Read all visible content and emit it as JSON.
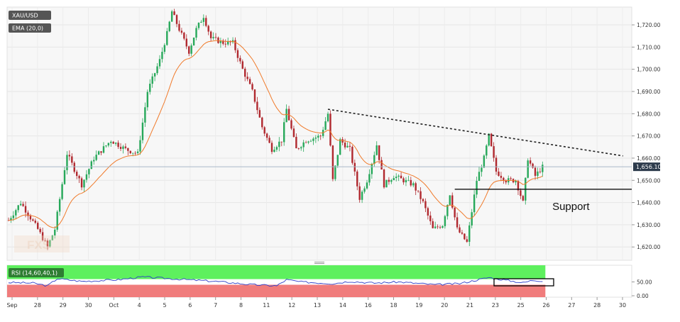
{
  "chart_data": [
    {
      "type": "candlestick",
      "legend": [
        {
          "label": "XAU/USD",
          "color": "#555555"
        },
        {
          "label": "EMA (20,0)",
          "color": "#555555"
        }
      ],
      "y_ticks": [
        "1,620.00",
        "1,630.00",
        "1,640.00",
        "1,650.00",
        "1,660.00",
        "1,670.00",
        "1,680.00",
        "1,690.00",
        "1,700.00",
        "1,710.00",
        "1,720.00"
      ],
      "y_tick_values": [
        1620,
        1630,
        1640,
        1650,
        1660,
        1670,
        1680,
        1690,
        1700,
        1710,
        1720
      ],
      "ylim": [
        1614,
        1728
      ],
      "x_ticks": [
        "Sep",
        "28",
        "29",
        "30",
        "Oct",
        "4",
        "5",
        "6",
        "7",
        "8",
        "11",
        "12",
        "13",
        "14",
        "16",
        "18",
        "19",
        "20",
        "21",
        "23",
        "25",
        "26",
        "27",
        "28",
        "30"
      ],
      "last_price": {
        "label": "1,656.10",
        "value": 1656.1
      },
      "price_path": [
        {
          "t": 0,
          "v": 1632
        },
        {
          "t": 5,
          "v": 1640
        },
        {
          "t": 12,
          "v": 1628
        },
        {
          "t": 16,
          "v": 1620
        },
        {
          "t": 19,
          "v": 1628
        },
        {
          "t": 24,
          "v": 1662
        },
        {
          "t": 30,
          "v": 1648
        },
        {
          "t": 35,
          "v": 1660
        },
        {
          "t": 42,
          "v": 1668
        },
        {
          "t": 48,
          "v": 1664
        },
        {
          "t": 53,
          "v": 1662
        },
        {
          "t": 57,
          "v": 1690
        },
        {
          "t": 62,
          "v": 1704
        },
        {
          "t": 65,
          "v": 1716
        },
        {
          "t": 67,
          "v": 1726
        },
        {
          "t": 70,
          "v": 1718
        },
        {
          "t": 74,
          "v": 1708
        },
        {
          "t": 77,
          "v": 1718
        },
        {
          "t": 80,
          "v": 1724
        },
        {
          "t": 83,
          "v": 1714
        },
        {
          "t": 88,
          "v": 1712
        },
        {
          "t": 92,
          "v": 1712
        },
        {
          "t": 96,
          "v": 1700
        },
        {
          "t": 100,
          "v": 1690
        },
        {
          "t": 104,
          "v": 1674
        },
        {
          "t": 108,
          "v": 1664
        },
        {
          "t": 112,
          "v": 1668
        },
        {
          "t": 114,
          "v": 1682
        },
        {
          "t": 118,
          "v": 1664
        },
        {
          "t": 122,
          "v": 1668
        },
        {
          "t": 128,
          "v": 1670
        },
        {
          "t": 131,
          "v": 1680
        },
        {
          "t": 133,
          "v": 1650
        },
        {
          "t": 136,
          "v": 1668
        },
        {
          "t": 140,
          "v": 1664
        },
        {
          "t": 144,
          "v": 1642
        },
        {
          "t": 147,
          "v": 1650
        },
        {
          "t": 151,
          "v": 1666
        },
        {
          "t": 154,
          "v": 1648
        },
        {
          "t": 158,
          "v": 1652
        },
        {
          "t": 162,
          "v": 1650
        },
        {
          "t": 166,
          "v": 1648
        },
        {
          "t": 170,
          "v": 1640
        },
        {
          "t": 174,
          "v": 1628
        },
        {
          "t": 178,
          "v": 1630
        },
        {
          "t": 181,
          "v": 1644
        },
        {
          "t": 184,
          "v": 1628
        },
        {
          "t": 188,
          "v": 1622
        },
        {
          "t": 192,
          "v": 1650
        },
        {
          "t": 195,
          "v": 1660
        },
        {
          "t": 197,
          "v": 1670
        },
        {
          "t": 200,
          "v": 1654
        },
        {
          "t": 204,
          "v": 1650
        },
        {
          "t": 208,
          "v": 1650
        },
        {
          "t": 211,
          "v": 1640
        },
        {
          "t": 213,
          "v": 1660
        },
        {
          "t": 216,
          "v": 1652
        },
        {
          "t": 219,
          "v": 1656
        }
      ],
      "trendline_label": "",
      "support": {
        "label": "Support",
        "value": 1646
      },
      "resistance": {
        "from": {
          "t": 131,
          "v": 1682
        },
        "to": {
          "t": 252,
          "v": 1661
        }
      }
    },
    {
      "type": "line",
      "legend": [
        {
          "label": "RSI (14,60,40,1)",
          "color": "#2e7d32"
        }
      ],
      "y_ticks": [
        "50.00",
        "0.00"
      ],
      "y_tick_values": [
        50,
        0
      ],
      "ylim": [
        0,
        100
      ],
      "overbought": 60,
      "oversold": 40,
      "rsi_path": [
        {
          "t": 0,
          "v": 48
        },
        {
          "t": 10,
          "v": 46
        },
        {
          "t": 16,
          "v": 36
        },
        {
          "t": 20,
          "v": 62
        },
        {
          "t": 30,
          "v": 52
        },
        {
          "t": 45,
          "v": 58
        },
        {
          "t": 55,
          "v": 68
        },
        {
          "t": 70,
          "v": 60
        },
        {
          "t": 85,
          "v": 52
        },
        {
          "t": 100,
          "v": 40
        },
        {
          "t": 110,
          "v": 36
        },
        {
          "t": 114,
          "v": 58
        },
        {
          "t": 120,
          "v": 50
        },
        {
          "t": 133,
          "v": 44
        },
        {
          "t": 140,
          "v": 52
        },
        {
          "t": 150,
          "v": 46
        },
        {
          "t": 160,
          "v": 50
        },
        {
          "t": 175,
          "v": 40
        },
        {
          "t": 185,
          "v": 44
        },
        {
          "t": 197,
          "v": 66
        },
        {
          "t": 205,
          "v": 55
        },
        {
          "t": 211,
          "v": 47
        },
        {
          "t": 215,
          "v": 56
        },
        {
          "t": 219,
          "v": 54
        }
      ]
    }
  ]
}
